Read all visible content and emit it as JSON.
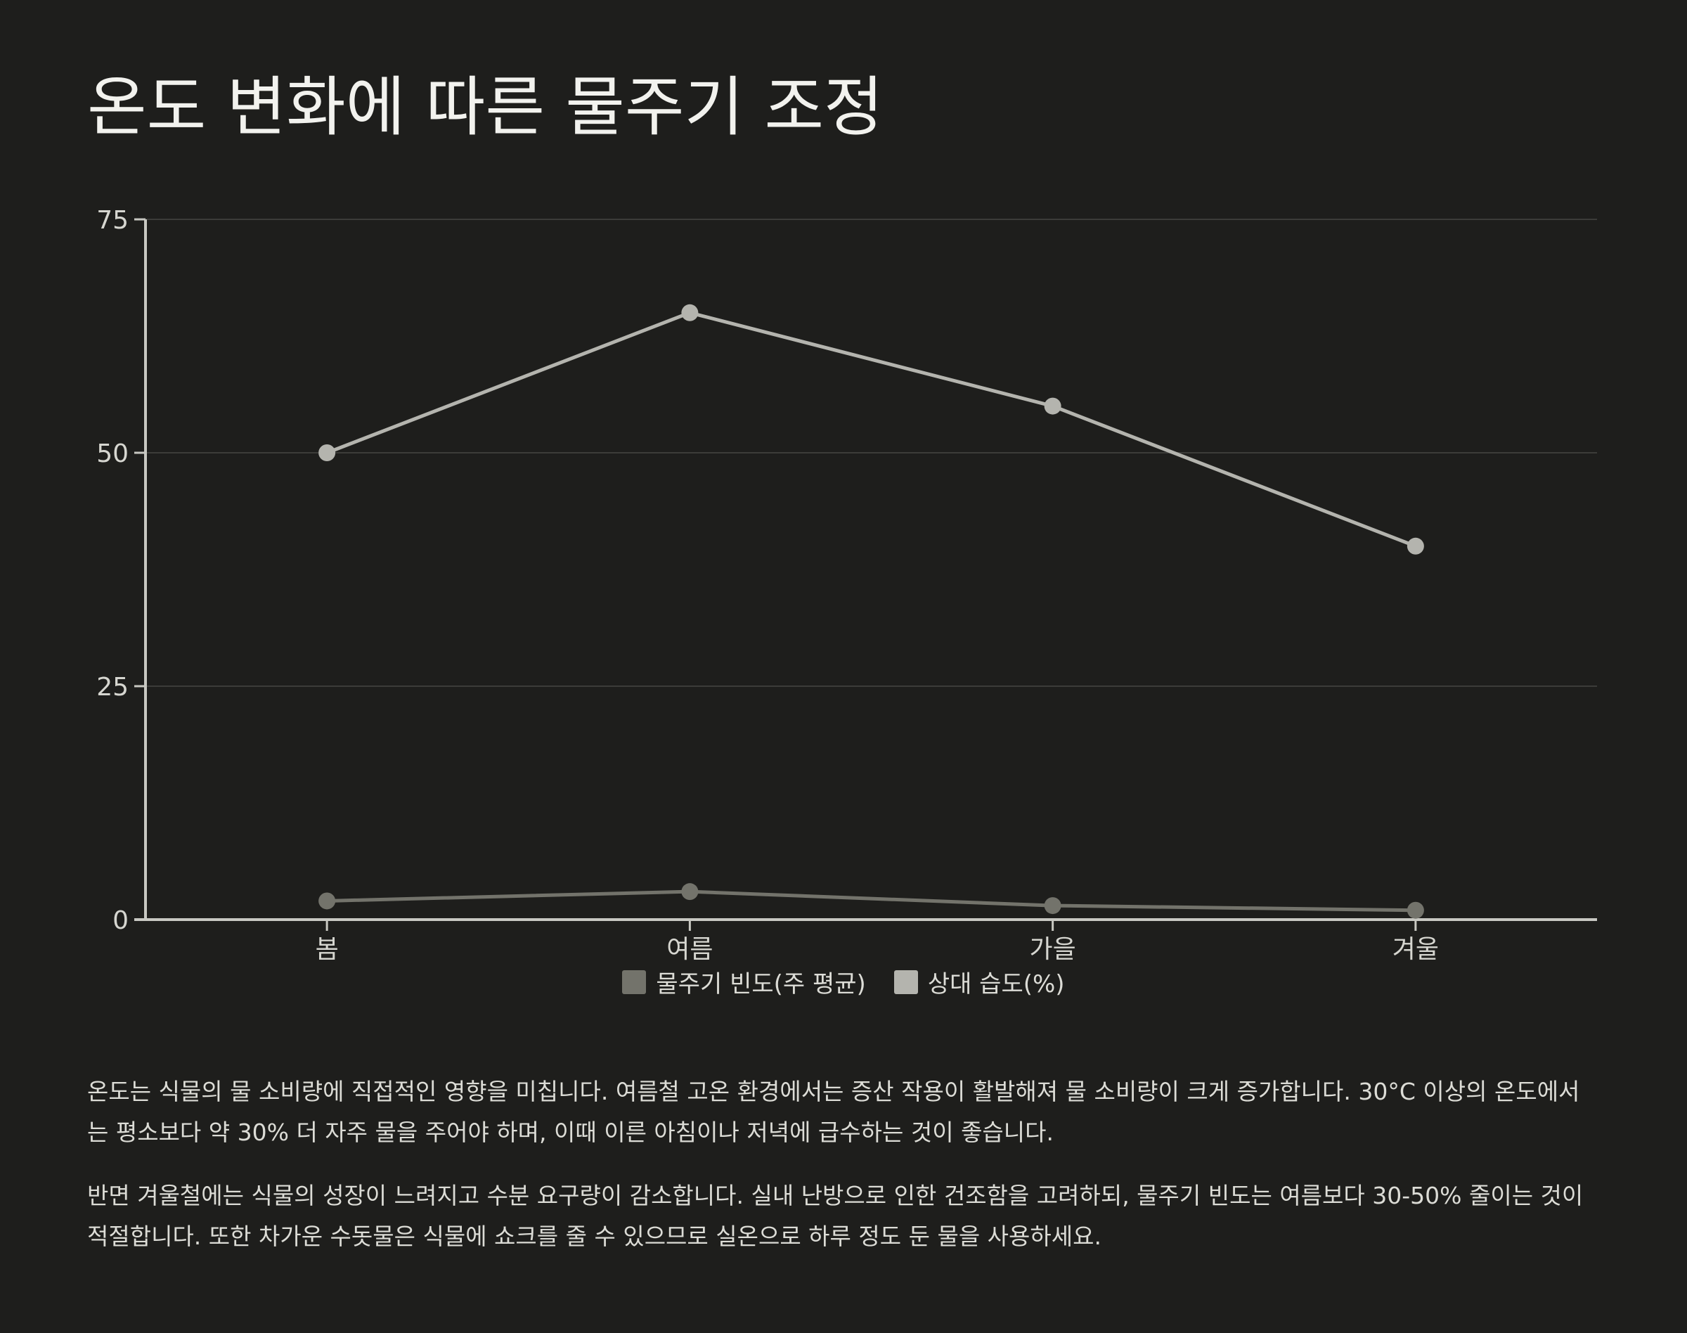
{
  "title": "온도 변화에 따른 물주기 조정",
  "chart_data": {
    "type": "line",
    "categories": [
      "봄",
      "여름",
      "가을",
      "겨울"
    ],
    "series": [
      {
        "name": "물주기 빈도(주 평균)",
        "values": [
          2,
          3,
          1.5,
          1
        ],
        "color": "#73736b"
      },
      {
        "name": "상대 습도(%)",
        "values": [
          50,
          65,
          55,
          40
        ],
        "color": "#b4b4ae"
      }
    ],
    "ylim": [
      0,
      75
    ],
    "yticks": [
      "0",
      "25",
      "50",
      "75"
    ],
    "grid": true,
    "legend": "bottom-center"
  },
  "paragraphs": [
    "온도는 식물의 물 소비량에 직접적인 영향을 미칩니다. 여름철 고온 환경에서는 증산 작용이 활발해져 물 소비량이 크게 증가합니다. 30°C 이상의 온도에서는 평소보다 약 30% 더 자주 물을 주어야 하며, 이때 이른 아침이나 저녁에 급수하는 것이 좋습니다.",
    "반면 겨울철에는 식물의 성장이 느려지고 수분 요구량이 감소합니다. 실내 난방으로 인한 건조함을 고려하되, 물주기 빈도는 여름보다 30-50% 줄이는 것이 적절합니다. 또한 차가운 수돗물은 식물에 쇼크를 줄 수 있으므로 실온으로 하루 정도 둔 물을 사용하세요."
  ]
}
